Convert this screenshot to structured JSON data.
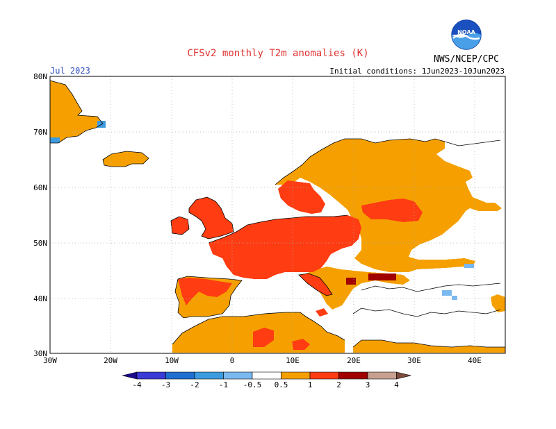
{
  "map": {
    "title": "CFSv2 monthly T2m anomalies (K)",
    "month_label": "Jul 2023",
    "initial_conditions": "Initial conditions: 1Jun2023-10Jun2023",
    "agency": "NWS/NCEP/CPC",
    "logo_text": "NOAA",
    "lat_labels": [
      "80N",
      "70N",
      "60N",
      "50N",
      "40N",
      "30N"
    ],
    "lon_labels": [
      "30W",
      "20W",
      "10W",
      "0",
      "10E",
      "20E",
      "30E",
      "40E"
    ],
    "region": {
      "lon_range": [
        -30,
        45
      ],
      "lat_range": [
        30,
        80
      ]
    },
    "colors": {
      "title": "#e03030",
      "month": "#3050c0",
      "land_outline": "#000000",
      "grid": "#b0b0b0"
    },
    "anomaly_areas": [
      {
        "region": "Greenland (east)",
        "level": "0.5 to 1"
      },
      {
        "region": "Iceland",
        "level": "0.5 to 1"
      },
      {
        "region": "Scandinavia and Finland",
        "level": "0.5 to 1"
      },
      {
        "region": "Russia (west)",
        "level": "0.5 to 1"
      },
      {
        "region": "Eastern Europe / Balkans",
        "level": "0.5 to 1"
      },
      {
        "region": "Iberian Peninsula",
        "level": "0.5 to 1"
      },
      {
        "region": "North Africa",
        "level": "0.5 to 1"
      },
      {
        "region": "British Isles",
        "level": "1 to 2"
      },
      {
        "region": "France, Germany, Poland",
        "level": "1 to 2"
      },
      {
        "region": "Southern Sweden / Baltic",
        "level": "1 to 2"
      },
      {
        "region": "Algeria / Tunisia spots",
        "level": "1 to 2"
      },
      {
        "region": "Balkans spots",
        "level": "2 to 3"
      },
      {
        "region": "Greenland coast",
        "level": "-1 to -0.5"
      },
      {
        "region": "Caspian area",
        "level": "-1 to -0.5"
      }
    ]
  },
  "legend": {
    "tick_labels": [
      "-4",
      "-3",
      "-2",
      "-1",
      "-0.5",
      "0.5",
      "1",
      "2",
      "3",
      "4"
    ],
    "bins": [
      {
        "color": "#1a0a8c"
      },
      {
        "color": "#3b3bd6"
      },
      {
        "color": "#1f6fd0"
      },
      {
        "color": "#3d9be0"
      },
      {
        "color": "#7ab8f0"
      },
      {
        "color": "#ffffff"
      },
      {
        "color": "#f5a000"
      },
      {
        "color": "#ff3c12"
      },
      {
        "color": "#a00000"
      },
      {
        "color": "#c8a090"
      },
      {
        "color": "#7a4a3c"
      }
    ]
  }
}
